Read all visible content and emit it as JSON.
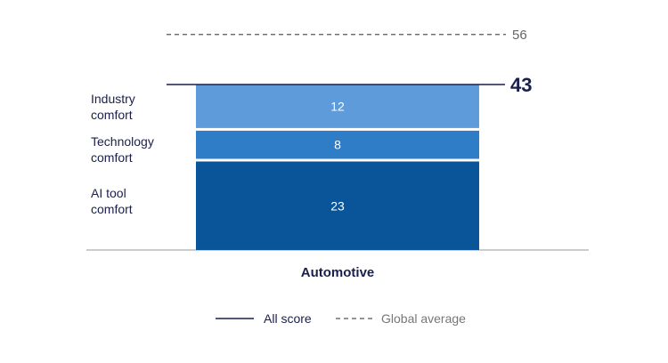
{
  "chart_data": {
    "type": "bar",
    "stacked": true,
    "categories": [
      "Automotive"
    ],
    "series": [
      {
        "name": "AI tool comfort",
        "values": [
          23
        ],
        "color": "#0a5499"
      },
      {
        "name": "Technology comfort",
        "values": [
          8
        ],
        "color": "#2f7cc7"
      },
      {
        "name": "Industry comfort",
        "values": [
          12
        ],
        "color": "#5d9bdb"
      }
    ],
    "total": {
      "value": 43,
      "name": "All score",
      "color": "#1a1f4d"
    },
    "global_average": {
      "value": 56,
      "name": "Global average",
      "color": "#555555"
    },
    "ylim": [
      0,
      62
    ],
    "grid": false,
    "legend": "bottom"
  },
  "labels": {
    "industry": [
      "Industry",
      "comfort"
    ],
    "technology": [
      "Technology",
      "comfort"
    ],
    "ai_tool": [
      "AI tool",
      "comfort"
    ]
  },
  "legend": {
    "all_score": "All score",
    "global_average": "Global average"
  }
}
